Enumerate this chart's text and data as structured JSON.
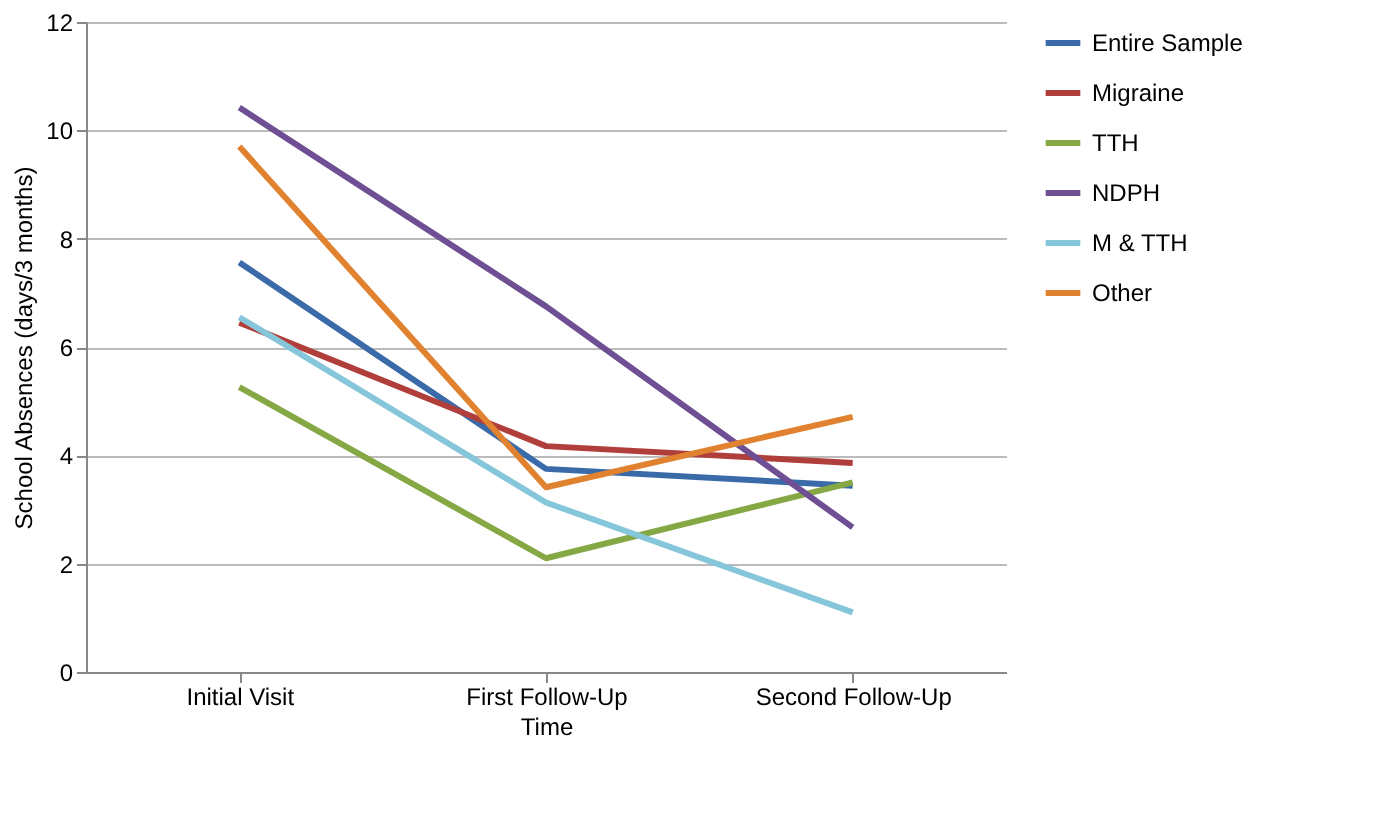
{
  "chart_data": {
    "type": "line",
    "xlabel": "Time",
    "ylabel": "School Absences (days/3 months)",
    "categories": [
      "Initial Visit",
      "First Follow-Up",
      "Second Follow-Up"
    ],
    "ylim": [
      0,
      12
    ],
    "yticks": [
      0,
      2,
      4,
      6,
      8,
      10,
      12
    ],
    "grid": "y",
    "legend": "right",
    "marker": "none",
    "line_style": "solid",
    "series": [
      {
        "name": "Entire Sample",
        "color": "#3a6aa8",
        "values": [
          7.56,
          3.75,
          3.44
        ]
      },
      {
        "name": "Migraine",
        "color": "#b03e3b",
        "values": [
          6.45,
          4.17,
          3.86
        ]
      },
      {
        "name": "TTH",
        "color": "#86a844",
        "values": [
          5.26,
          2.1,
          3.5
        ]
      },
      {
        "name": "NDPH",
        "color": "#6e4f93",
        "values": [
          10.42,
          6.75,
          2.67
        ]
      },
      {
        "name": "M & TTH",
        "color": "#86c6da",
        "values": [
          6.55,
          3.13,
          1.1
        ]
      },
      {
        "name": "Other",
        "color": "#e0822f",
        "values": [
          9.7,
          3.41,
          4.71
        ]
      }
    ]
  }
}
